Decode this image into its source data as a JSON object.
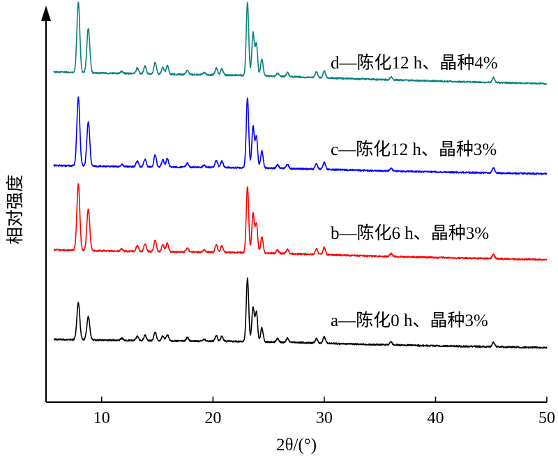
{
  "chart_data": {
    "type": "line",
    "xlabel": "2θ/(°)",
    "ylabel": "相对强度",
    "xlim": [
      5,
      50
    ],
    "xticks": [
      10,
      20,
      30,
      40,
      50
    ],
    "y_tick_labels": false,
    "peaks_2theta": [
      7.9,
      8.8,
      11.8,
      13.2,
      13.9,
      14.8,
      15.5,
      15.9,
      17.7,
      19.2,
      20.3,
      20.8,
      23.1,
      23.6,
      23.9,
      24.4,
      25.8,
      26.7,
      29.3,
      30.0,
      36.0,
      45.2
    ],
    "series": [
      {
        "name": "a—陈化0 h、晶种3%",
        "color": "#000000",
        "relative_intensity": [
          0.53,
          0.33,
          0.03,
          0.06,
          0.08,
          0.12,
          0.07,
          0.09,
          0.05,
          0.03,
          0.08,
          0.07,
          0.9,
          0.49,
          0.42,
          0.2,
          0.05,
          0.06,
          0.06,
          0.09,
          0.04,
          0.06
        ]
      },
      {
        "name": "b—陈化6 h、晶种3%",
        "color": "#ff0000",
        "relative_intensity": [
          0.95,
          0.6,
          0.03,
          0.08,
          0.11,
          0.17,
          0.1,
          0.12,
          0.06,
          0.03,
          0.11,
          0.09,
          0.95,
          0.57,
          0.42,
          0.23,
          0.05,
          0.06,
          0.08,
          0.1,
          0.04,
          0.06
        ]
      },
      {
        "name": "c—陈化12 h、晶种3%",
        "color": "#0000ff",
        "relative_intensity": [
          0.98,
          0.63,
          0.03,
          0.08,
          0.11,
          0.17,
          0.1,
          0.12,
          0.06,
          0.03,
          0.1,
          0.09,
          1.0,
          0.59,
          0.44,
          0.24,
          0.05,
          0.06,
          0.08,
          0.1,
          0.04,
          0.07
        ]
      },
      {
        "name": "d—陈化12 h、晶种4%",
        "color": "#0a8080",
        "relative_intensity": [
          1.0,
          0.64,
          0.03,
          0.08,
          0.11,
          0.17,
          0.1,
          0.12,
          0.06,
          0.03,
          0.1,
          0.09,
          1.04,
          0.61,
          0.46,
          0.24,
          0.05,
          0.06,
          0.08,
          0.1,
          0.04,
          0.07
        ]
      }
    ]
  }
}
